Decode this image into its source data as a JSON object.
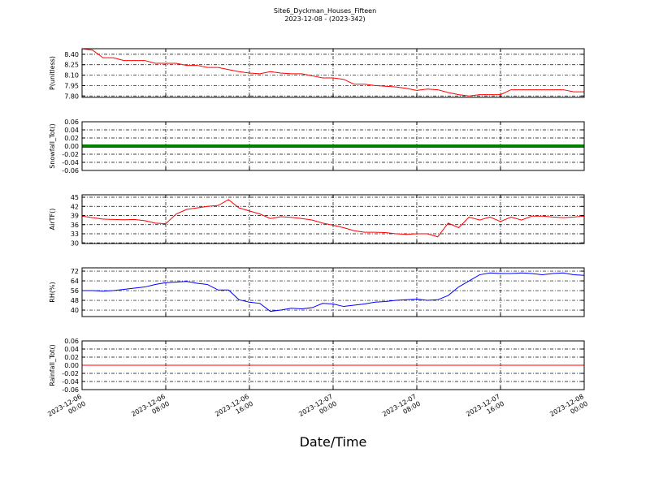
{
  "title": "Site6_Dyckman_Houses_Fifteen",
  "subtitle": "2023-12-08 - (2023-342)",
  "chart_data": [
    {
      "type": "line",
      "ylabel": "P(unitless)",
      "xlim": [
        "2023-12-06 00:00",
        "2023-12-08 00:00"
      ],
      "xticks": [
        "2023-12-06 00:00",
        "2023-12-06 08:00",
        "2023-12-06 16:00",
        "2023-12-07 00:00",
        "2023-12-07 08:00",
        "2023-12-07 16:00",
        "2023-12-08 00:00"
      ],
      "ylim": [
        7.78,
        8.48
      ],
      "yticks": [
        {
          "value": 7.8,
          "label": "7.80"
        },
        7.95,
        {
          "value": 8.1,
          "label": "8.10"
        },
        8.25,
        {
          "value": 8.4,
          "label": "8.40"
        }
      ],
      "grid": true,
      "x": [
        "2023-12-06 00:00",
        "2023-12-06 01:00",
        "2023-12-06 02:00",
        "2023-12-06 03:00",
        "2023-12-06 04:00",
        "2023-12-06 05:00",
        "2023-12-06 06:00",
        "2023-12-06 07:00",
        "2023-12-06 08:00",
        "2023-12-06 09:00",
        "2023-12-06 10:00",
        "2023-12-06 11:00",
        "2023-12-06 12:00",
        "2023-12-06 13:00",
        "2023-12-06 14:00",
        "2023-12-06 15:00",
        "2023-12-06 16:00",
        "2023-12-06 17:00",
        "2023-12-06 18:00",
        "2023-12-06 19:00",
        "2023-12-06 20:00",
        "2023-12-06 21:00",
        "2023-12-06 22:00",
        "2023-12-06 23:00",
        "2023-12-07 00:00",
        "2023-12-07 01:00",
        "2023-12-07 02:00",
        "2023-12-07 03:00",
        "2023-12-07 04:00",
        "2023-12-07 05:00",
        "2023-12-07 06:00",
        "2023-12-07 07:00",
        "2023-12-07 08:00",
        "2023-12-07 09:00",
        "2023-12-07 10:00",
        "2023-12-07 11:00",
        "2023-12-07 12:00",
        "2023-12-07 13:00",
        "2023-12-07 14:00",
        "2023-12-07 15:00",
        "2023-12-07 16:00",
        "2023-12-07 17:00",
        "2023-12-07 18:00",
        "2023-12-07 19:00",
        "2023-12-07 20:00",
        "2023-12-07 21:00",
        "2023-12-07 22:00",
        "2023-12-07 23:00",
        "2023-12-08 00:00"
      ],
      "series": [
        {
          "name": "P",
          "color": "#ff0000",
          "values": [
            8.48,
            8.46,
            8.35,
            8.35,
            8.31,
            8.31,
            8.31,
            8.27,
            8.27,
            8.27,
            8.24,
            8.24,
            8.21,
            8.21,
            8.18,
            8.15,
            8.13,
            8.12,
            8.15,
            8.13,
            8.12,
            8.12,
            8.09,
            8.06,
            8.06,
            8.04,
            7.97,
            7.97,
            7.95,
            7.94,
            7.93,
            7.91,
            7.88,
            7.9,
            7.89,
            7.85,
            7.82,
            7.8,
            7.82,
            7.82,
            7.82,
            7.89,
            7.89,
            7.89,
            7.89,
            7.89,
            7.89,
            7.86,
            7.86
          ]
        }
      ]
    },
    {
      "type": "line",
      "ylabel": "Snowfall_Tot()",
      "xlim": [
        "2023-12-06 00:00",
        "2023-12-08 00:00"
      ],
      "xticks": [
        "2023-12-06 00:00",
        "2023-12-06 08:00",
        "2023-12-06 16:00",
        "2023-12-07 00:00",
        "2023-12-07 08:00",
        "2023-12-07 16:00",
        "2023-12-08 00:00"
      ],
      "ylim": [
        -0.06,
        0.06
      ],
      "yticks": [
        -0.06,
        -0.04,
        -0.02,
        {
          "value": 0,
          "label": "0.00"
        },
        0.02,
        0.04,
        0.06
      ],
      "grid": true,
      "x": [
        "2023-12-06 00:00",
        "2023-12-06 01:00",
        "2023-12-06 02:00",
        "2023-12-06 03:00",
        "2023-12-06 04:00",
        "2023-12-06 05:00",
        "2023-12-06 06:00",
        "2023-12-06 07:00",
        "2023-12-06 08:00",
        "2023-12-06 09:00",
        "2023-12-06 10:00",
        "2023-12-06 11:00",
        "2023-12-06 12:00",
        "2023-12-06 13:00",
        "2023-12-06 14:00",
        "2023-12-06 15:00",
        "2023-12-06 16:00",
        "2023-12-06 17:00",
        "2023-12-06 18:00",
        "2023-12-06 19:00",
        "2023-12-06 20:00",
        "2023-12-06 21:00",
        "2023-12-06 22:00",
        "2023-12-06 23:00",
        "2023-12-07 00:00",
        "2023-12-07 01:00",
        "2023-12-07 02:00",
        "2023-12-07 03:00",
        "2023-12-07 04:00",
        "2023-12-07 05:00",
        "2023-12-07 06:00",
        "2023-12-07 07:00",
        "2023-12-07 08:00",
        "2023-12-07 09:00",
        "2023-12-07 10:00",
        "2023-12-07 11:00",
        "2023-12-07 12:00",
        "2023-12-07 13:00",
        "2023-12-07 14:00",
        "2023-12-07 15:00",
        "2023-12-07 16:00",
        "2023-12-07 17:00",
        "2023-12-07 18:00",
        "2023-12-07 19:00",
        "2023-12-07 20:00",
        "2023-12-07 21:00",
        "2023-12-07 22:00",
        "2023-12-07 23:00",
        "2023-12-08 00:00"
      ],
      "series": [
        {
          "name": "Snowfall_Tot",
          "color": "#008000",
          "width": 4,
          "values": [
            0,
            0,
            0,
            0,
            0,
            0,
            0,
            0,
            0,
            0,
            0,
            0,
            0,
            0,
            0,
            0,
            0,
            0,
            0,
            0,
            0,
            0,
            0,
            0,
            0,
            0,
            0,
            0,
            0,
            0,
            0,
            0,
            0,
            0,
            0,
            0,
            0,
            0,
            0,
            0,
            0,
            0,
            0,
            0,
            0,
            0,
            0,
            0,
            0
          ]
        }
      ]
    },
    {
      "type": "line",
      "ylabel": "AirTF()",
      "xlim": [
        "2023-12-06 00:00",
        "2023-12-08 00:00"
      ],
      "xticks": [
        "2023-12-06 00:00",
        "2023-12-06 08:00",
        "2023-12-06 16:00",
        "2023-12-07 00:00",
        "2023-12-07 08:00",
        "2023-12-07 16:00",
        "2023-12-08 00:00"
      ],
      "ylim": [
        29.8,
        45.8
      ],
      "yticks": [
        30,
        33,
        36,
        39,
        42,
        45
      ],
      "grid": true,
      "x": [
        "2023-12-06 00:00",
        "2023-12-06 01:00",
        "2023-12-06 02:00",
        "2023-12-06 03:00",
        "2023-12-06 04:00",
        "2023-12-06 05:00",
        "2023-12-06 06:00",
        "2023-12-06 07:00",
        "2023-12-06 08:00",
        "2023-12-06 09:00",
        "2023-12-06 10:00",
        "2023-12-06 11:00",
        "2023-12-06 12:00",
        "2023-12-06 13:00",
        "2023-12-06 14:00",
        "2023-12-06 15:00",
        "2023-12-06 16:00",
        "2023-12-06 17:00",
        "2023-12-06 18:00",
        "2023-12-06 19:00",
        "2023-12-06 20:00",
        "2023-12-06 21:00",
        "2023-12-06 22:00",
        "2023-12-06 23:00",
        "2023-12-07 00:00",
        "2023-12-07 01:00",
        "2023-12-07 02:00",
        "2023-12-07 03:00",
        "2023-12-07 04:00",
        "2023-12-07 05:00",
        "2023-12-07 06:00",
        "2023-12-07 07:00",
        "2023-12-07 08:00",
        "2023-12-07 09:00",
        "2023-12-07 10:00",
        "2023-12-07 11:00",
        "2023-12-07 12:00",
        "2023-12-07 13:00",
        "2023-12-07 14:00",
        "2023-12-07 15:00",
        "2023-12-07 16:00",
        "2023-12-07 17:00",
        "2023-12-07 18:00",
        "2023-12-07 19:00",
        "2023-12-07 20:00",
        "2023-12-07 21:00",
        "2023-12-07 22:00",
        "2023-12-07 23:00",
        "2023-12-08 00:00"
      ],
      "series": [
        {
          "name": "AirTF",
          "color": "#ff0000",
          "values": [
            38.8,
            38.3,
            37.8,
            37.7,
            37.6,
            37.7,
            37.3,
            36.5,
            36.3,
            39.5,
            41,
            41.5,
            42,
            42.3,
            44.2,
            41.5,
            40.5,
            39.5,
            38,
            38.6,
            38.4,
            38,
            37.5,
            36.5,
            35.8,
            35,
            34,
            33.5,
            33.5,
            33.4,
            33,
            32.8,
            33,
            33,
            32,
            36.5,
            35,
            38.5,
            37.5,
            38.5,
            37,
            38.5,
            37.5,
            38.8,
            38.8,
            38.5,
            38.3,
            38.5,
            38.8
          ]
        }
      ]
    },
    {
      "type": "line",
      "ylabel": "RH(%)",
      "xlim": [
        "2023-12-06 00:00",
        "2023-12-08 00:00"
      ],
      "xticks": [
        "2023-12-06 00:00",
        "2023-12-06 08:00",
        "2023-12-06 16:00",
        "2023-12-07 00:00",
        "2023-12-07 08:00",
        "2023-12-07 16:00",
        "2023-12-08 00:00"
      ],
      "ylim": [
        34.7,
        74.7
      ],
      "yticks": [
        40,
        48,
        56,
        64,
        72
      ],
      "grid": true,
      "x": [
        "2023-12-06 00:00",
        "2023-12-06 01:00",
        "2023-12-06 02:00",
        "2023-12-06 03:00",
        "2023-12-06 04:00",
        "2023-12-06 05:00",
        "2023-12-06 06:00",
        "2023-12-06 07:00",
        "2023-12-06 08:00",
        "2023-12-06 09:00",
        "2023-12-06 10:00",
        "2023-12-06 11:00",
        "2023-12-06 12:00",
        "2023-12-06 13:00",
        "2023-12-06 14:00",
        "2023-12-06 15:00",
        "2023-12-06 16:00",
        "2023-12-06 17:00",
        "2023-12-06 18:00",
        "2023-12-06 19:00",
        "2023-12-06 20:00",
        "2023-12-06 21:00",
        "2023-12-06 22:00",
        "2023-12-06 23:00",
        "2023-12-07 00:00",
        "2023-12-07 01:00",
        "2023-12-07 02:00",
        "2023-12-07 03:00",
        "2023-12-07 04:00",
        "2023-12-07 05:00",
        "2023-12-07 06:00",
        "2023-12-07 07:00",
        "2023-12-07 08:00",
        "2023-12-07 09:00",
        "2023-12-07 10:00",
        "2023-12-07 11:00",
        "2023-12-07 12:00",
        "2023-12-07 13:00",
        "2023-12-07 14:00",
        "2023-12-07 15:00",
        "2023-12-07 16:00",
        "2023-12-07 17:00",
        "2023-12-07 18:00",
        "2023-12-07 19:00",
        "2023-12-07 20:00",
        "2023-12-07 21:00",
        "2023-12-07 22:00",
        "2023-12-07 23:00",
        "2023-12-08 00:00"
      ],
      "series": [
        {
          "name": "RH",
          "color": "#0000ff",
          "values": [
            56,
            56,
            55.5,
            56,
            57,
            58,
            59,
            61,
            62.5,
            63,
            63.5,
            62,
            61,
            56.5,
            56.5,
            48.5,
            46.5,
            45.5,
            39,
            40,
            41.5,
            41,
            42,
            45.5,
            45,
            43,
            44,
            45,
            46.5,
            47,
            48,
            48.5,
            49,
            48,
            48.5,
            52,
            59,
            64,
            69,
            70.5,
            70,
            70,
            70.5,
            70,
            69,
            70,
            70.5,
            69,
            68.5
          ]
        }
      ]
    },
    {
      "type": "line",
      "ylabel": "Rainfall_Tot()",
      "xlabel": "Date/Time",
      "xlim": [
        "2023-12-06 00:00",
        "2023-12-08 00:00"
      ],
      "xticks": [
        "2023-12-06 00:00",
        "2023-12-06 08:00",
        "2023-12-06 16:00",
        "2023-12-07 00:00",
        "2023-12-07 08:00",
        "2023-12-07 16:00",
        "2023-12-08 00:00"
      ],
      "ylim": [
        -0.06,
        0.06
      ],
      "yticks": [
        -0.06,
        -0.04,
        -0.02,
        {
          "value": 0,
          "label": "0.00"
        },
        0.02,
        0.04,
        0.06
      ],
      "grid": true,
      "x": [
        "2023-12-06 00:00",
        "2023-12-06 01:00",
        "2023-12-06 02:00",
        "2023-12-06 03:00",
        "2023-12-06 04:00",
        "2023-12-06 05:00",
        "2023-12-06 06:00",
        "2023-12-06 07:00",
        "2023-12-06 08:00",
        "2023-12-06 09:00",
        "2023-12-06 10:00",
        "2023-12-06 11:00",
        "2023-12-06 12:00",
        "2023-12-06 13:00",
        "2023-12-06 14:00",
        "2023-12-06 15:00",
        "2023-12-06 16:00",
        "2023-12-06 17:00",
        "2023-12-06 18:00",
        "2023-12-06 19:00",
        "2023-12-06 20:00",
        "2023-12-06 21:00",
        "2023-12-06 22:00",
        "2023-12-06 23:00",
        "2023-12-07 00:00",
        "2023-12-07 01:00",
        "2023-12-07 02:00",
        "2023-12-07 03:00",
        "2023-12-07 04:00",
        "2023-12-07 05:00",
        "2023-12-07 06:00",
        "2023-12-07 07:00",
        "2023-12-07 08:00",
        "2023-12-07 09:00",
        "2023-12-07 10:00",
        "2023-12-07 11:00",
        "2023-12-07 12:00",
        "2023-12-07 13:00",
        "2023-12-07 14:00",
        "2023-12-07 15:00",
        "2023-12-07 16:00",
        "2023-12-07 17:00",
        "2023-12-07 18:00",
        "2023-12-07 19:00",
        "2023-12-07 20:00",
        "2023-12-07 21:00",
        "2023-12-07 22:00",
        "2023-12-07 23:00",
        "2023-12-08 00:00"
      ],
      "series": [
        {
          "name": "Rainfall_Tot",
          "color": "#ff0000",
          "values": [
            0,
            0,
            0,
            0,
            0,
            0,
            0,
            0,
            0,
            0,
            0,
            0,
            0,
            0,
            0,
            0,
            0,
            0,
            0,
            0,
            0,
            0,
            0,
            0,
            0,
            0,
            0,
            0,
            0,
            0,
            0,
            0,
            0,
            0,
            0,
            0,
            0,
            0,
            0,
            0,
            0,
            0,
            0,
            0,
            0,
            0,
            0,
            0,
            0
          ]
        }
      ]
    }
  ]
}
